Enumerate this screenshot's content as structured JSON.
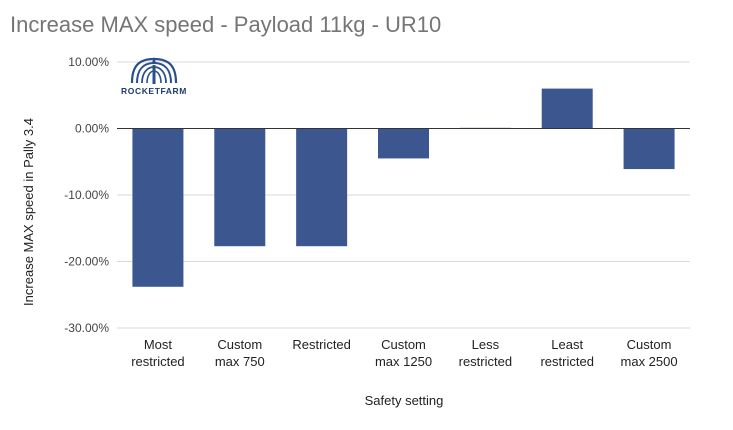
{
  "chart_data": {
    "type": "bar",
    "title": "Increase MAX speed - Payload 11kg - UR10",
    "xlabel": "Safety setting",
    "ylabel": "Increase MAX speed in Pally 3.4",
    "categories": [
      [
        "Most",
        "restricted"
      ],
      [
        "Custom",
        "max 750"
      ],
      [
        "Restricted"
      ],
      [
        "Custom",
        "max 1250"
      ],
      [
        "Less",
        "restricted"
      ],
      [
        "Least",
        "restricted"
      ],
      [
        "Custom",
        "max 2500"
      ]
    ],
    "values": [
      -23.8,
      -17.7,
      -17.7,
      -4.5,
      0.1,
      6.0,
      -6.1
    ],
    "ylim": [
      -30,
      10
    ],
    "yticks": [
      10,
      0,
      -10,
      -20,
      -30
    ],
    "ytick_labels": [
      "10.00%",
      "0.00%",
      "-10.00%",
      "-20.00%",
      "-30.00%"
    ],
    "bar_color": "#3c5690",
    "grid": true,
    "legend": "none"
  },
  "logo": {
    "text": "ROCKETFARM",
    "color": "#1f3a6e"
  }
}
